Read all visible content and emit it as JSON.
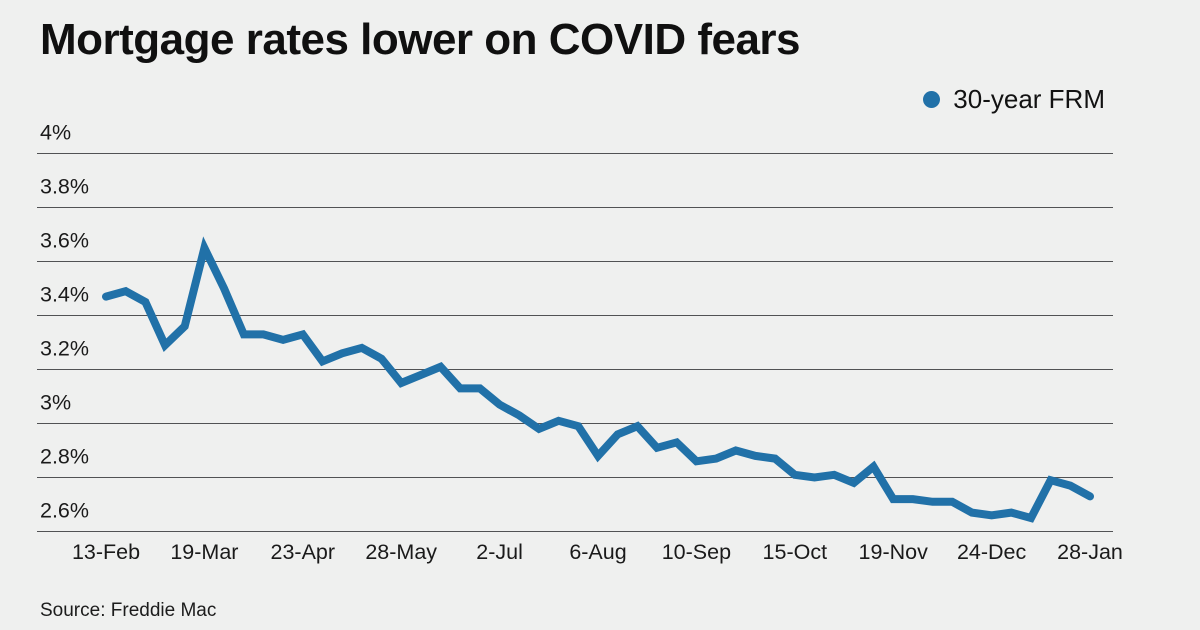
{
  "title": "Mortgage rates lower on COVID fears",
  "legend": {
    "label": "30-year FRM"
  },
  "source": "Source: Freddie Mac",
  "colors": {
    "background": "#eff0ef",
    "line": "#2171a8",
    "gridline": "#515254",
    "tick_text": "#1a1a1a"
  },
  "chart_data": {
    "type": "line",
    "title": "Mortgage rates lower on COVID fears",
    "grid": "horizontal",
    "legend_position": "top-right",
    "ylabel": "",
    "xlabel": "",
    "ylim": [
      2.6,
      4.0
    ],
    "y_ticks": {
      "labels": [
        "4%",
        "3.8%",
        "3.6%",
        "3.4%",
        "3.2%",
        "3%",
        "2.8%",
        "2.6%"
      ],
      "values": [
        4.0,
        3.8,
        3.6,
        3.4,
        3.2,
        3.0,
        2.8,
        2.6
      ]
    },
    "x_tick_indices": [
      0,
      5,
      10,
      15,
      20,
      25,
      30,
      35,
      40,
      45,
      50
    ],
    "x_tick_labels": [
      "13-Feb",
      "19-Mar",
      "23-Apr",
      "28-May",
      "2-Jul",
      "6-Aug",
      "10-Sep",
      "15-Oct",
      "19-Nov",
      "24-Dec",
      "28-Jan"
    ],
    "categories": [
      "13-Feb",
      "20-Feb",
      "27-Feb",
      "5-Mar",
      "12-Mar",
      "19-Mar",
      "26-Mar",
      "2-Apr",
      "9-Apr",
      "16-Apr",
      "23-Apr",
      "30-Apr",
      "7-May",
      "14-May",
      "21-May",
      "28-May",
      "4-Jun",
      "11-Jun",
      "18-Jun",
      "25-Jun",
      "2-Jul",
      "9-Jul",
      "16-Jul",
      "23-Jul",
      "30-Jul",
      "6-Aug",
      "13-Aug",
      "20-Aug",
      "27-Aug",
      "3-Sep",
      "10-Sep",
      "17-Sep",
      "24-Sep",
      "1-Oct",
      "8-Oct",
      "15-Oct",
      "22-Oct",
      "29-Oct",
      "5-Nov",
      "12-Nov",
      "19-Nov",
      "26-Nov",
      "3-Dec",
      "10-Dec",
      "17-Dec",
      "24-Dec",
      "31-Dec",
      "7-Jan",
      "14-Jan",
      "21-Jan",
      "28-Jan"
    ],
    "series": [
      {
        "name": "30-year FRM",
        "color": "#2171a8",
        "values": [
          3.47,
          3.49,
          3.45,
          3.29,
          3.36,
          3.65,
          3.5,
          3.33,
          3.33,
          3.31,
          3.33,
          3.23,
          3.26,
          3.28,
          3.24,
          3.15,
          3.18,
          3.21,
          3.13,
          3.13,
          3.07,
          3.03,
          2.98,
          3.01,
          2.99,
          2.88,
          2.96,
          2.99,
          2.91,
          2.93,
          2.86,
          2.87,
          2.9,
          2.88,
          2.87,
          2.81,
          2.8,
          2.81,
          2.78,
          2.84,
          2.72,
          2.72,
          2.71,
          2.71,
          2.67,
          2.66,
          2.67,
          2.65,
          2.79,
          2.77,
          2.73
        ]
      }
    ],
    "source": "Source: Freddie Mac"
  }
}
